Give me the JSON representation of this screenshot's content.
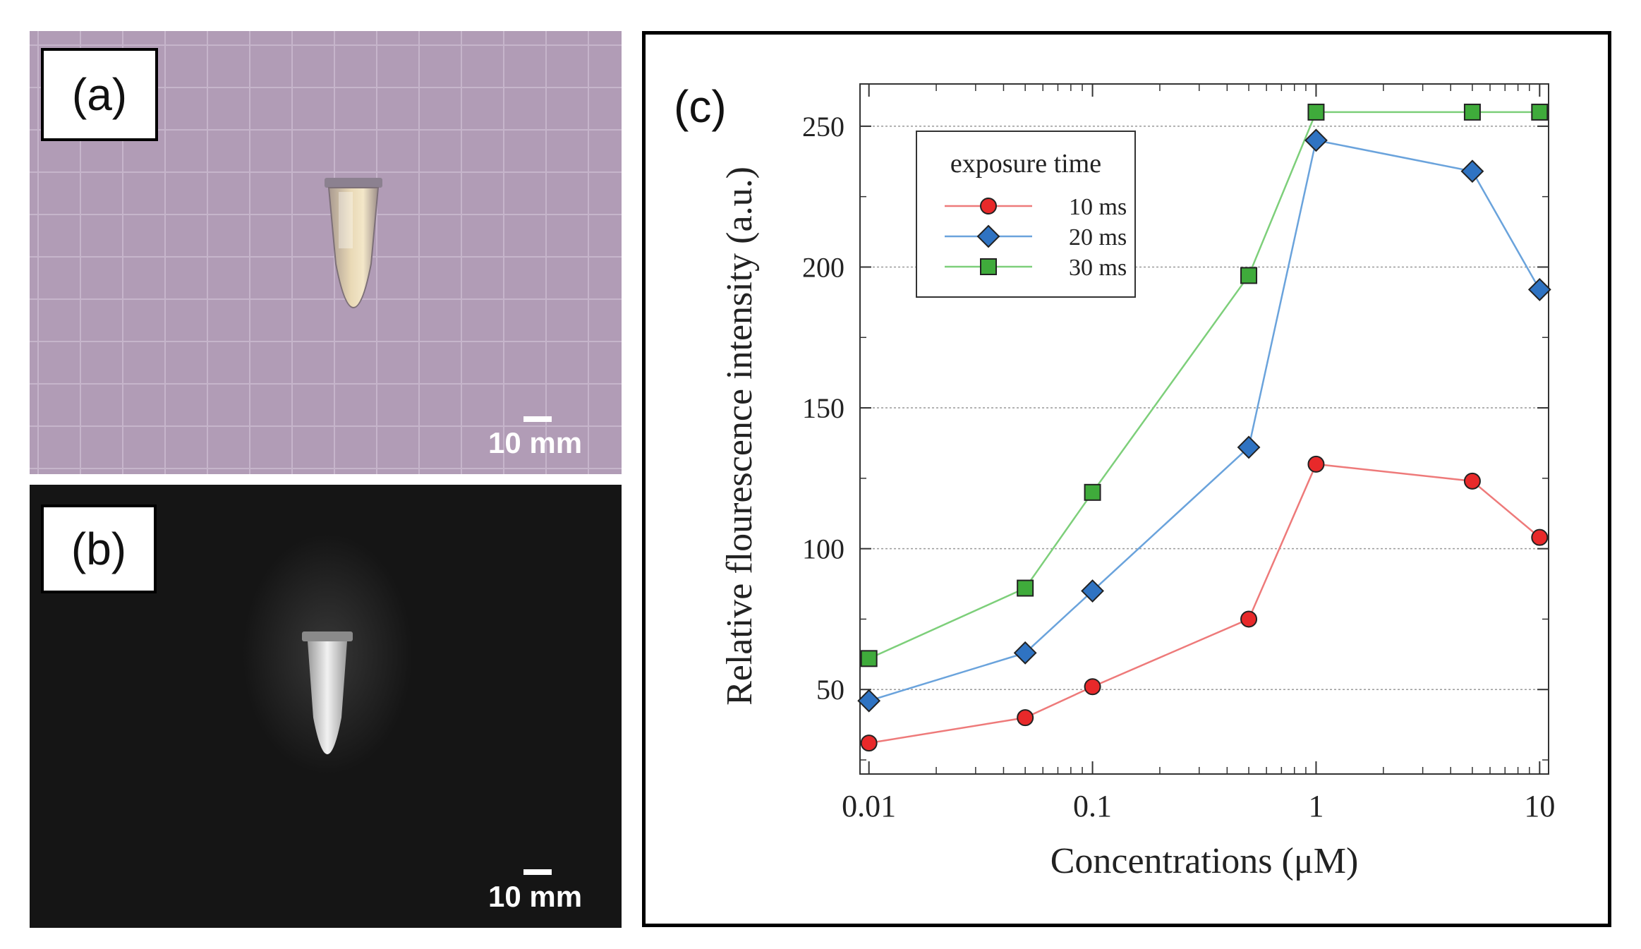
{
  "panels": {
    "a": {
      "tag": "(a)",
      "scale_bar_label": "10 mm",
      "colors": {
        "background": "#b19cb6",
        "grid_line": "#c8b8ce",
        "tube": "#d9c8a8"
      }
    },
    "b": {
      "tag": "(b)",
      "scale_bar_label": "10 mm",
      "colors": {
        "background": "#151515",
        "tube_glow": "#e8e8e8"
      }
    },
    "c": {
      "tag": "(c)"
    }
  },
  "chart_data": {
    "type": "line",
    "title": "",
    "xlabel": "Concentrations (μM)",
    "ylabel": "Relative flourescence intensity (a.u.)",
    "xscale": "log",
    "xlim": [
      0.01,
      10
    ],
    "ylim": [
      20,
      265
    ],
    "x_ticks": [
      0.01,
      0.1,
      1,
      10
    ],
    "x_tick_labels": [
      "0.01",
      "0.1",
      "1",
      "10"
    ],
    "y_ticks": [
      50,
      100,
      150,
      200,
      250
    ],
    "y_tick_labels": [
      "50",
      "100",
      "150",
      "200",
      "250"
    ],
    "grid": "horizontal dotted",
    "legend": {
      "title": "exposure time",
      "placement": "top-left"
    },
    "x": [
      0.01,
      0.05,
      0.1,
      0.5,
      1,
      5,
      10
    ],
    "series": [
      {
        "name": "10 ms",
        "marker": "circle",
        "color": "#e8292a",
        "line_color": "#ee7a7a",
        "values": [
          31,
          40,
          51,
          75,
          130,
          124,
          104
        ]
      },
      {
        "name": "20 ms",
        "marker": "diamond",
        "color": "#2f73c2",
        "line_color": "#6aa3dc",
        "values": [
          46,
          63,
          85,
          136,
          245,
          234,
          192
        ]
      },
      {
        "name": "30 ms",
        "marker": "square",
        "color": "#3fab3b",
        "line_color": "#7dcf7a",
        "values": [
          61,
          86,
          120,
          197,
          255,
          255,
          255
        ]
      }
    ]
  }
}
